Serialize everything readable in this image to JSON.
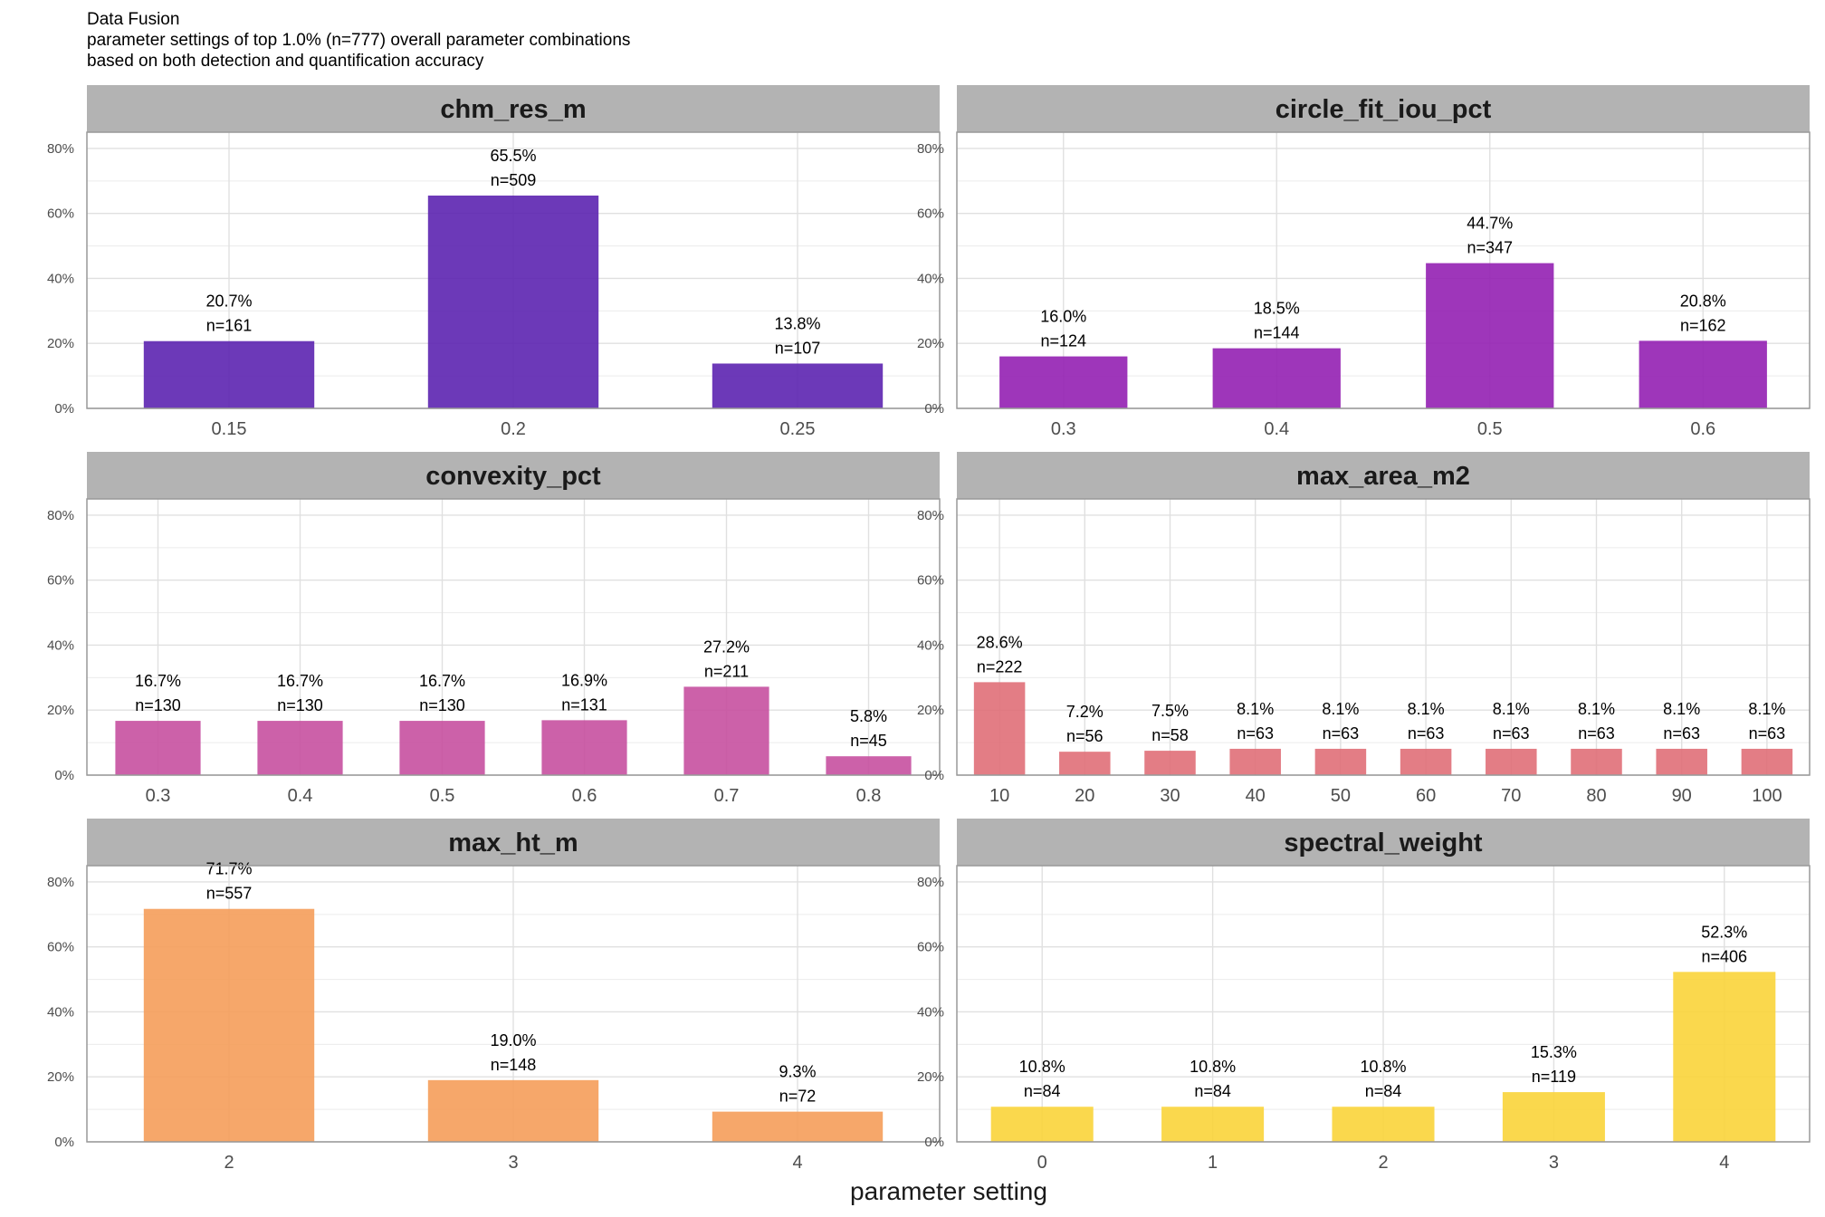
{
  "title": "Data Fusion",
  "subtitle_1": "parameter settings of top 1.0% (n=777) overall parameter combinations",
  "subtitle_2": "based on both detection and quantification accuracy",
  "xlabel": "parameter setting",
  "colors": {
    "panel_strip": "#b3b3b3",
    "grid": "#e0e0e0",
    "border": "#999999"
  },
  "chart_data": {
    "type": "bar",
    "facet_layout": "3 rows x 2 columns",
    "y_axis": {
      "ylim": [
        0,
        0.85
      ],
      "ticks": [
        0,
        0.2,
        0.4,
        0.6,
        0.8
      ],
      "tick_labels": [
        "0%",
        "20%",
        "40%",
        "60%",
        "80%"
      ]
    },
    "grid": true,
    "panels": [
      {
        "name": "chm_res_m",
        "color": "#5C23B0",
        "categories": [
          "0.15",
          "0.2",
          "0.25"
        ],
        "values": [
          0.207,
          0.655,
          0.138
        ],
        "pct_labels": [
          "20.7%",
          "65.5%",
          "13.8%"
        ],
        "n_labels": [
          "n=161",
          "n=509",
          "n=107"
        ]
      },
      {
        "name": "circle_fit_iou_pct",
        "color": "#9420B2",
        "categories": [
          "0.3",
          "0.4",
          "0.5",
          "0.6"
        ],
        "values": [
          0.16,
          0.185,
          0.447,
          0.208
        ],
        "pct_labels": [
          "16.0%",
          "18.5%",
          "44.7%",
          "20.8%"
        ],
        "n_labels": [
          "n=124",
          "n=144",
          "n=347",
          "n=162"
        ]
      },
      {
        "name": "convexity_pct",
        "color": "#C650A0",
        "categories": [
          "0.3",
          "0.4",
          "0.5",
          "0.6",
          "0.7",
          "0.8"
        ],
        "values": [
          0.167,
          0.167,
          0.167,
          0.169,
          0.272,
          0.058
        ],
        "pct_labels": [
          "16.7%",
          "16.7%",
          "16.7%",
          "16.9%",
          "27.2%",
          "5.8%"
        ],
        "n_labels": [
          "n=130",
          "n=130",
          "n=130",
          "n=131",
          "n=211",
          "n=45"
        ]
      },
      {
        "name": "max_area_m2",
        "color": "#E06F78",
        "categories": [
          "10",
          "20",
          "30",
          "40",
          "50",
          "60",
          "70",
          "80",
          "90",
          "100"
        ],
        "values": [
          0.286,
          0.072,
          0.075,
          0.081,
          0.081,
          0.081,
          0.081,
          0.081,
          0.081,
          0.081
        ],
        "pct_labels": [
          "28.6%",
          "7.2%",
          "7.5%",
          "8.1%",
          "8.1%",
          "8.1%",
          "8.1%",
          "8.1%",
          "8.1%",
          "8.1%"
        ],
        "n_labels": [
          "n=222",
          "n=56",
          "n=58",
          "n=63",
          "n=63",
          "n=63",
          "n=63",
          "n=63",
          "n=63",
          "n=63"
        ]
      },
      {
        "name": "max_ht_m",
        "color": "#F59D5A",
        "categories": [
          "2",
          "3",
          "4"
        ],
        "values": [
          0.717,
          0.19,
          0.093
        ],
        "pct_labels": [
          "71.7%",
          "19.0%",
          "9.3%"
        ],
        "n_labels": [
          "n=557",
          "n=148",
          "n=72"
        ]
      },
      {
        "name": "spectral_weight",
        "color": "#F9D43A",
        "categories": [
          "0",
          "1",
          "2",
          "3",
          "4"
        ],
        "values": [
          0.108,
          0.108,
          0.108,
          0.153,
          0.523
        ],
        "pct_labels": [
          "10.8%",
          "10.8%",
          "10.8%",
          "15.3%",
          "52.3%"
        ],
        "n_labels": [
          "n=84",
          "n=84",
          "n=84",
          "n=119",
          "n=406"
        ]
      }
    ]
  }
}
